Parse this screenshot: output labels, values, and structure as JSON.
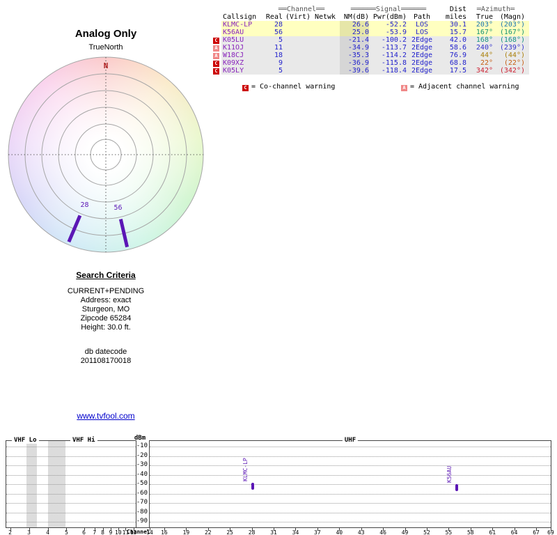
{
  "colors": {
    "accent_purple": "#5b16b5",
    "value_blue": "#2222cc",
    "callsign_purple": "#8822bb",
    "warning_red": "#cc0000",
    "warning_pink": "#f08888",
    "link_blue": "#0000cc",
    "north_red": "#b22222"
  },
  "table": {
    "group_headers": {
      "channel": "══Channel══",
      "signal": "══════Signal══════",
      "dist": "Dist",
      "azimuth": "═Azimuth═"
    },
    "columns": {
      "callsign": "Callsign",
      "real": "Real",
      "virt": "(Virt)",
      "netwk": "Netwk",
      "nm": "NM(dB)",
      "pwr": "Pwr(dBm)",
      "path": "Path",
      "miles": "miles",
      "true": "True",
      "magn": "(Magn)"
    },
    "rows": [
      {
        "warn": "",
        "callsign": "KLMC-LP",
        "real": "28",
        "virt": "",
        "netwk": "",
        "nm": "26.6",
        "pwr": "-52.2",
        "path": "LOS",
        "miles": "30.1",
        "true": "203°",
        "magn": "(203°)",
        "bg": "#ffffc0",
        "nm_bg": "#e6e6a8",
        "az_color": "#1974b3"
      },
      {
        "warn": "",
        "callsign": "K56AU",
        "real": "56",
        "virt": "",
        "netwk": "",
        "nm": "25.0",
        "pwr": "-53.9",
        "path": "LOS",
        "miles": "15.7",
        "true": "167°",
        "magn": "(167°)",
        "bg": "#ffffc0",
        "nm_bg": "#e6e6a8",
        "az_color": "#169372"
      },
      {
        "warn": "C",
        "callsign": "K05LU",
        "real": "5",
        "virt": "",
        "netwk": "",
        "nm": "-21.4",
        "pwr": "-100.2",
        "path": "2Edge",
        "miles": "42.0",
        "true": "168°",
        "magn": "(168°)",
        "bg": "#e9e9e9",
        "nm_bg": "#d6d6d6",
        "az_color": "#169380"
      },
      {
        "warn": "A",
        "callsign": "K11OJ",
        "real": "11",
        "virt": "",
        "netwk": "",
        "nm": "-34.9",
        "pwr": "-113.7",
        "path": "2Edge",
        "miles": "58.6",
        "true": "240°",
        "magn": "(239°)",
        "bg": "#e9e9e9",
        "nm_bg": "#d6d6d6",
        "az_color": "#3333cc"
      },
      {
        "warn": "A",
        "callsign": "W18CJ",
        "real": "18",
        "virt": "",
        "netwk": "",
        "nm": "-35.3",
        "pwr": "-114.2",
        "path": "2Edge",
        "miles": "76.9",
        "true": "44°",
        "magn": "(44°)",
        "bg": "#e9e9e9",
        "nm_bg": "#d6d6d6",
        "az_color": "#aa7f09"
      },
      {
        "warn": "C",
        "callsign": "K09XZ",
        "real": "9",
        "virt": "",
        "netwk": "",
        "nm": "-36.9",
        "pwr": "-115.8",
        "path": "2Edge",
        "miles": "68.8",
        "true": "22°",
        "magn": "(22°)",
        "bg": "#e9e9e9",
        "nm_bg": "#d6d6d6",
        "az_color": "#c65e10"
      },
      {
        "warn": "C",
        "callsign": "K05LY",
        "real": "5",
        "virt": "",
        "netwk": "",
        "nm": "-39.6",
        "pwr": "-118.4",
        "path": "2Edge",
        "miles": "17.5",
        "true": "342°",
        "magn": "(342°)",
        "bg": "#e9e9e9",
        "nm_bg": "#d6d6d6",
        "az_color": "#cc2233"
      }
    ],
    "legend": [
      {
        "icon": "C",
        "icon_bg": "#cc0000",
        "text": "= Co-channel warning"
      },
      {
        "icon": "A",
        "icon_bg": "#f08888",
        "text": "= Adjacent channel warning"
      }
    ]
  },
  "search": {
    "heading": "Search Criteria",
    "lines": [
      "CURRENT+PENDING",
      "Address: exact",
      "Sturgeon, MO",
      "Zipcode 65284",
      "Height: 30.0 ft."
    ],
    "db_lines": [
      "db datecode",
      "201108170018"
    ]
  },
  "link_text": "www.tvfool.com",
  "chart_data": [
    {
      "type": "polar",
      "title": "Analog Only",
      "true_north_label": "TrueNorth",
      "north_label": "N",
      "markers": [
        {
          "channel": "28",
          "azimuth_deg": 203
        },
        {
          "channel": "56",
          "azimuth_deg": 167
        }
      ]
    },
    {
      "type": "scatter",
      "ylabel": "dBm",
      "xlabel": "Channel",
      "ylim": [
        -90,
        -10
      ],
      "yticks": [
        -10,
        -20,
        -30,
        -40,
        -50,
        -60,
        -70,
        -80,
        -90
      ],
      "sections": {
        "vhf_lo": "VHF Lo",
        "vhf_hi": "VHF Hi",
        "uhf": "UHF"
      },
      "vhf_channels": [
        2,
        3,
        4,
        5,
        6,
        7,
        8,
        9,
        10,
        11,
        13
      ],
      "uhf_channels": [
        14,
        16,
        19,
        22,
        25,
        28,
        31,
        34,
        37,
        40,
        43,
        46,
        49,
        52,
        55,
        58,
        61,
        64,
        67,
        69
      ],
      "uhf_range": [
        14,
        69
      ],
      "shaded_bands_frac": [
        [
          0.155,
          0.235
        ],
        [
          0.32,
          0.455
        ]
      ],
      "points": [
        {
          "label": "KLMC-LP",
          "channel": 28,
          "dbm": -52.2
        },
        {
          "label": "K56AU",
          "channel": 56,
          "dbm": -53.9
        }
      ]
    }
  ]
}
